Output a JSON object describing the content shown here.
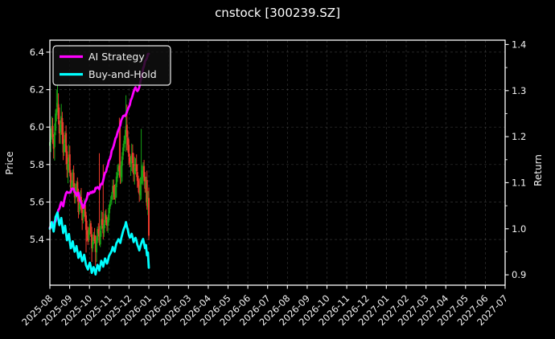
{
  "chart_data": {
    "type": "candlestick+line",
    "title": "cnstock [300239.SZ]",
    "legend": {
      "position": "upper-left",
      "entries": [
        {
          "label": "AI Strategy",
          "color": "#ff00ff"
        },
        {
          "label": "Buy-and-Hold",
          "color": "#00ffff"
        }
      ]
    },
    "left_axis": {
      "label": "Price",
      "ticks": [
        6.4,
        6.2,
        6.0,
        5.8,
        5.6,
        5.4
      ],
      "range": [
        5.156,
        6.464
      ]
    },
    "right_axis": {
      "label": "Return",
      "ticks": [
        1.4,
        1.3,
        1.2,
        1.1,
        1.0,
        0.9
      ],
      "range": [
        0.8775,
        1.4095
      ],
      "minor_ticks": [
        1.35,
        1.25,
        1.15,
        1.05,
        0.95
      ]
    },
    "x_axis": {
      "tick_labels": [
        "2025-08",
        "2025-09",
        "2025-10",
        "2025-11",
        "2025-12",
        "2026-01",
        "2026-02",
        "2026-03",
        "2026-04",
        "2026-05",
        "2026-06",
        "2026-07",
        "2026-08",
        "2026-09",
        "2026-10",
        "2026-11",
        "2026-12",
        "2027-01",
        "2027-02",
        "2027-03",
        "2027-04",
        "2027-05",
        "2027-06",
        "2027-07"
      ],
      "data_start": "2025-08",
      "data_end": "2026-01",
      "data_month_span": 5.0
    },
    "colors": {
      "background": "#000000",
      "text": "#f2f2f2",
      "grid": "#9a9a9a",
      "spine": "#ffffff",
      "candle_up": "#15a315",
      "candle_down": "#ee3a2c",
      "strategy": "#ff00ff",
      "buyhold": "#00ffff"
    },
    "price_series": {
      "name": "300239.SZ OHLC",
      "axis": "left",
      "trading_days": 105,
      "initial_price": 5.92,
      "close_anchors": [
        [
          0,
          5.92
        ],
        [
          2,
          6.01
        ],
        [
          4,
          5.89
        ],
        [
          6,
          6.07
        ],
        [
          8,
          6.13
        ],
        [
          10,
          5.97
        ],
        [
          12,
          6.05
        ],
        [
          14,
          5.86
        ],
        [
          16,
          5.95
        ],
        [
          18,
          5.77
        ],
        [
          20,
          5.85
        ],
        [
          22,
          5.67
        ],
        [
          24,
          5.75
        ],
        [
          26,
          5.62
        ],
        [
          28,
          5.7
        ],
        [
          30,
          5.55
        ],
        [
          32,
          5.62
        ],
        [
          34,
          5.51
        ],
        [
          36,
          5.58
        ],
        [
          38,
          5.45
        ],
        [
          40,
          5.4
        ],
        [
          42,
          5.49
        ],
        [
          44,
          5.36
        ],
        [
          46,
          5.43
        ],
        [
          48,
          5.34
        ],
        [
          50,
          5.46
        ],
        [
          52,
          5.39
        ],
        [
          54,
          5.51
        ],
        [
          56,
          5.43
        ],
        [
          58,
          5.54
        ],
        [
          60,
          5.47
        ],
        [
          62,
          5.56
        ],
        [
          64,
          5.61
        ],
        [
          66,
          5.68
        ],
        [
          68,
          5.62
        ],
        [
          70,
          5.73
        ],
        [
          72,
          5.79
        ],
        [
          74,
          5.74
        ],
        [
          76,
          5.85
        ],
        [
          78,
          5.93
        ],
        [
          80,
          6.0
        ],
        [
          82,
          5.9
        ],
        [
          84,
          5.8
        ],
        [
          86,
          5.85
        ],
        [
          88,
          5.75
        ],
        [
          90,
          5.81
        ],
        [
          92,
          5.71
        ],
        [
          94,
          5.65
        ],
        [
          96,
          5.74
        ],
        [
          98,
          5.79
        ],
        [
          100,
          5.67
        ],
        [
          101,
          5.71
        ],
        [
          102,
          5.58
        ],
        [
          103,
          5.61
        ],
        [
          104,
          5.42
        ]
      ],
      "high_overrides": [
        [
          7,
          6.2
        ],
        [
          8,
          6.23
        ],
        [
          9,
          6.18
        ],
        [
          52,
          5.86
        ],
        [
          56,
          5.8
        ],
        [
          73,
          6.05
        ],
        [
          74,
          6.0
        ],
        [
          80,
          6.17
        ],
        [
          81,
          6.12
        ],
        [
          96,
          5.99
        ]
      ],
      "low_overrides": [
        [
          38,
          5.33
        ],
        [
          44,
          5.28
        ],
        [
          48,
          5.26
        ],
        [
          49,
          5.28
        ],
        [
          104,
          5.4
        ]
      ]
    },
    "strategy_series": {
      "name": "AI Strategy",
      "axis": "right",
      "anchors": [
        [
          0,
          1.0
        ],
        [
          3,
          1.006
        ],
        [
          6,
          1.018
        ],
        [
          8,
          1.035
        ],
        [
          10,
          1.042
        ],
        [
          12,
          1.056
        ],
        [
          14,
          1.05
        ],
        [
          16,
          1.072
        ],
        [
          18,
          1.082
        ],
        [
          21,
          1.078
        ],
        [
          23,
          1.086
        ],
        [
          26,
          1.082
        ],
        [
          28,
          1.07
        ],
        [
          30,
          1.076
        ],
        [
          32,
          1.058
        ],
        [
          35,
          1.046
        ],
        [
          38,
          1.064
        ],
        [
          40,
          1.076
        ],
        [
          43,
          1.08
        ],
        [
          46,
          1.078
        ],
        [
          48,
          1.086
        ],
        [
          50,
          1.092
        ],
        [
          52,
          1.086
        ],
        [
          54,
          1.096
        ],
        [
          56,
          1.103
        ],
        [
          58,
          1.12
        ],
        [
          60,
          1.133
        ],
        [
          62,
          1.148
        ],
        [
          64,
          1.16
        ],
        [
          66,
          1.176
        ],
        [
          68,
          1.188
        ],
        [
          70,
          1.2
        ],
        [
          72,
          1.212
        ],
        [
          74,
          1.228
        ],
        [
          75,
          1.238
        ],
        [
          77,
          1.242
        ],
        [
          79,
          1.245
        ],
        [
          81,
          1.252
        ],
        [
          83,
          1.265
        ],
        [
          85,
          1.278
        ],
        [
          87,
          1.292
        ],
        [
          89,
          1.303
        ],
        [
          90,
          1.31
        ],
        [
          92,
          1.296
        ],
        [
          94,
          1.306
        ],
        [
          96,
          1.327
        ],
        [
          98,
          1.346
        ],
        [
          100,
          1.362
        ],
        [
          102,
          1.373
        ],
        [
          104,
          1.382
        ]
      ]
    },
    "buyhold_series": {
      "name": "Buy-and-Hold",
      "axis": "right",
      "derivation": "close / initial_price",
      "start_value": 1.0,
      "end_value": 0.915
    }
  }
}
